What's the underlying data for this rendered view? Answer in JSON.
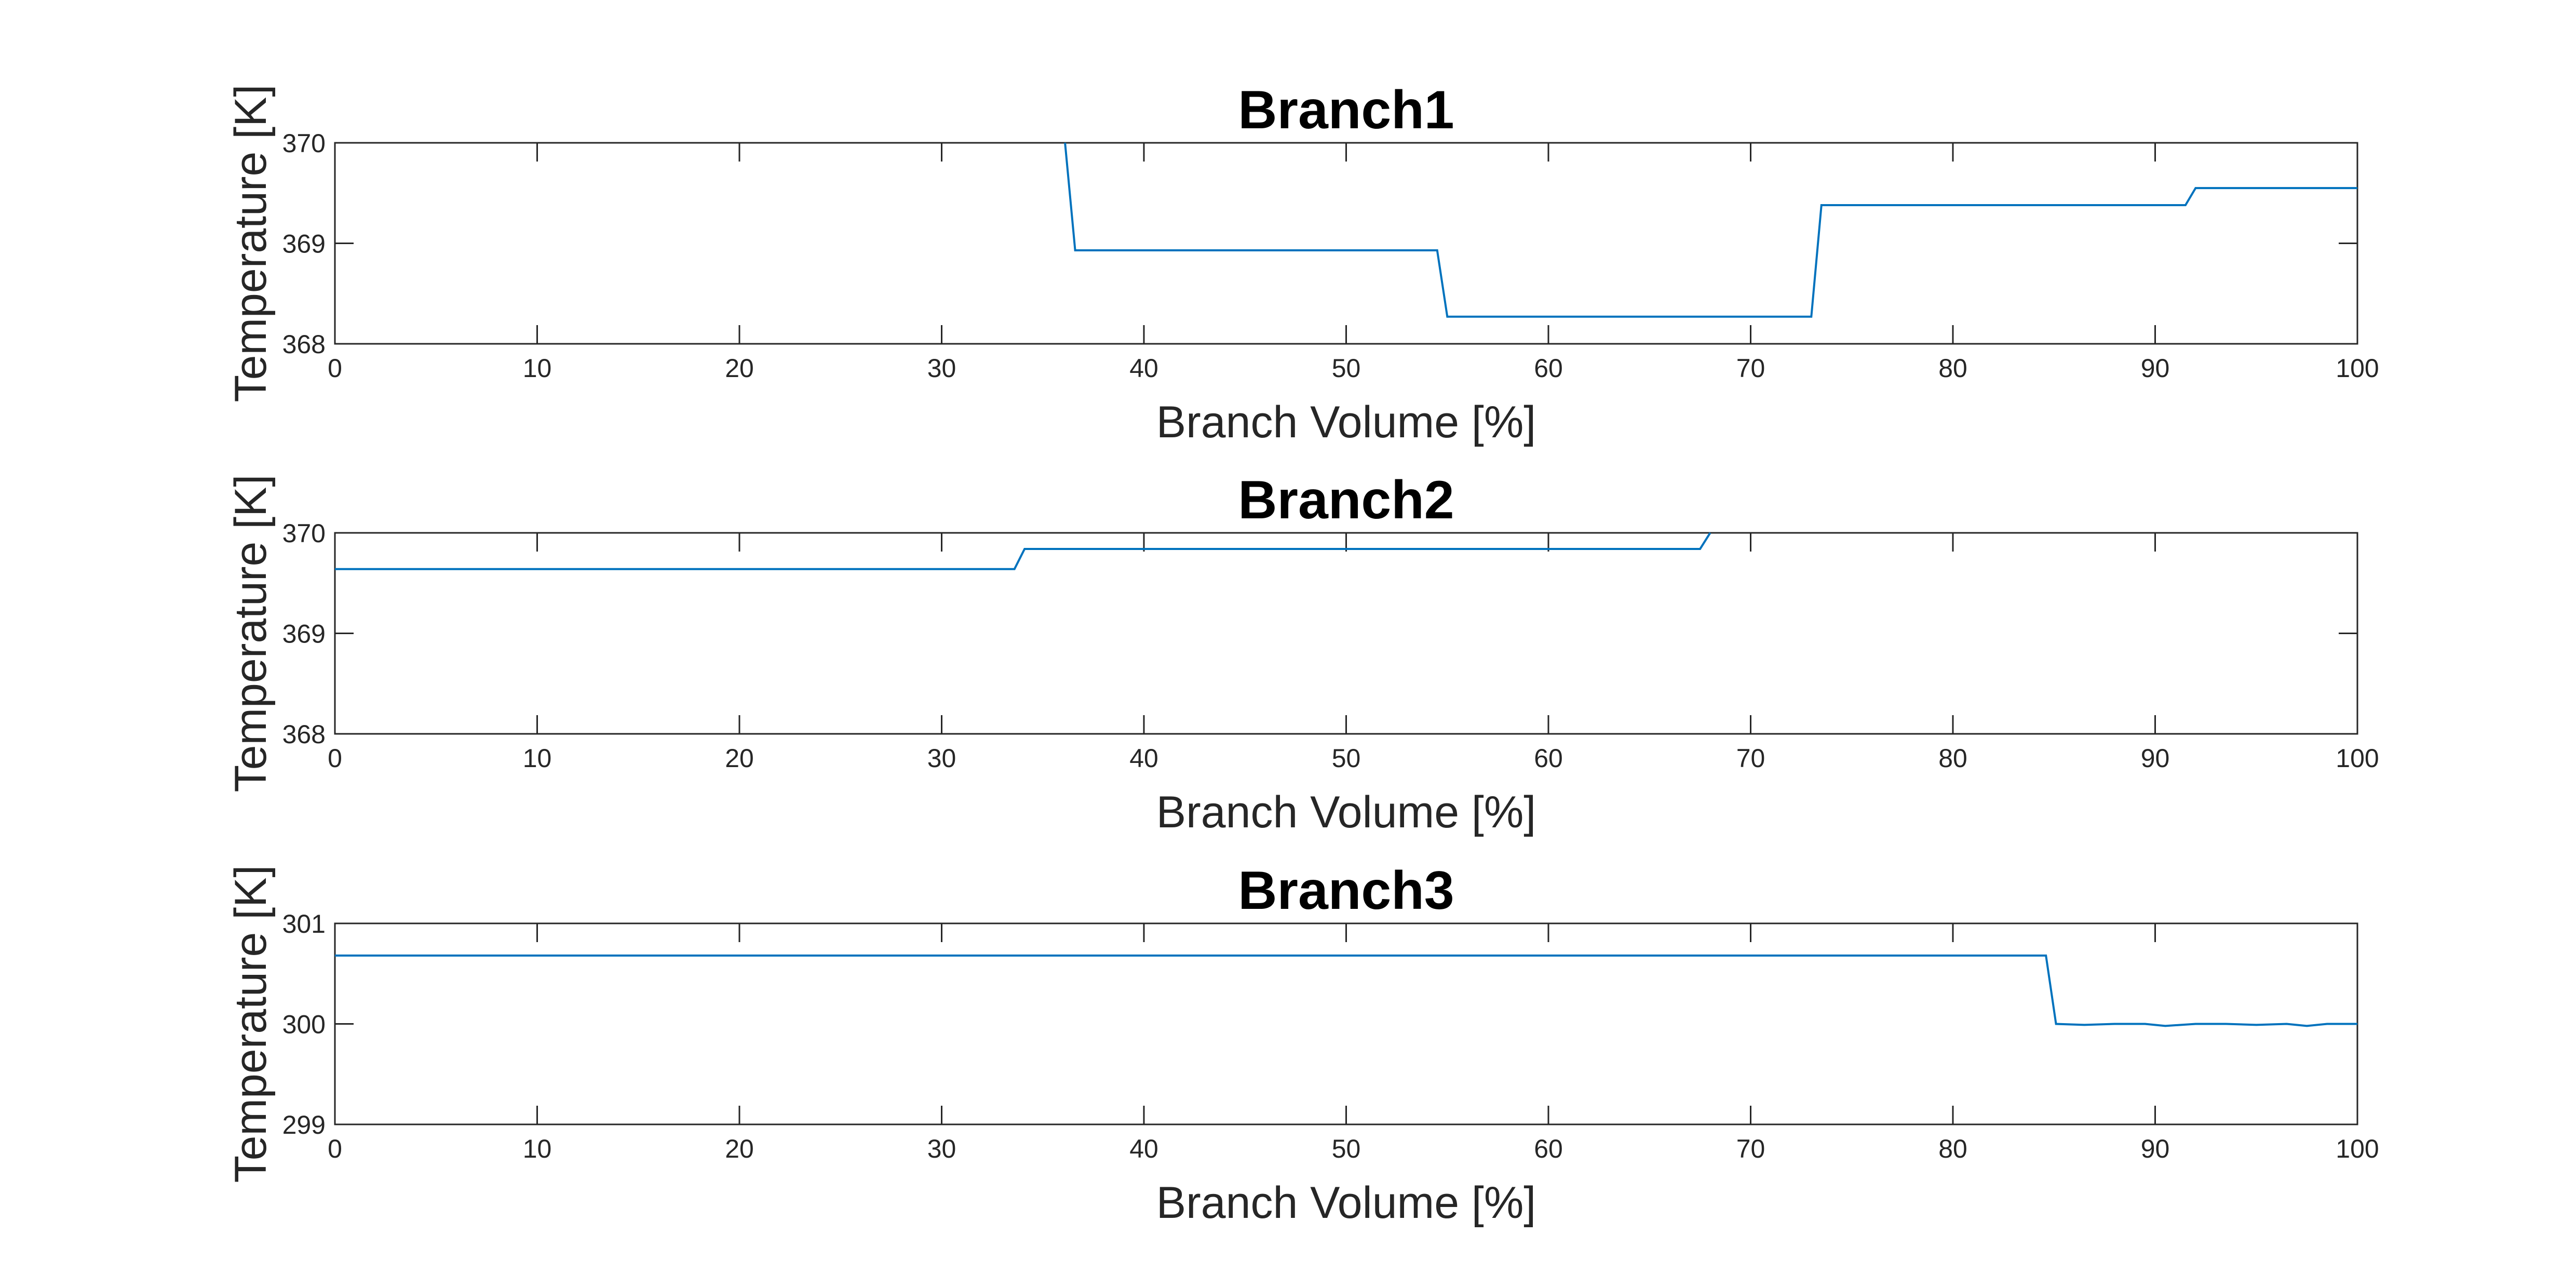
{
  "colors": {
    "line": "#0072BD",
    "axes": "#262626",
    "background": "#ffffff"
  },
  "chart_data": [
    {
      "type": "line",
      "title": "Branch1",
      "xlabel": "Branch Volume [%]",
      "ylabel": "Temperature [K]",
      "xlim": [
        0,
        100
      ],
      "ylim": [
        368,
        370
      ],
      "xticks": [
        "0",
        "10",
        "20",
        "30",
        "40",
        "50",
        "60",
        "70",
        "80",
        "90",
        "100"
      ],
      "yticks": [
        "368",
        "369",
        "370"
      ],
      "grid": false,
      "legend": "none",
      "x": [
        36.1,
        36.6,
        54.5,
        55.0,
        73.0,
        73.5,
        91.5,
        92.0,
        100
      ],
      "y": [
        370.0,
        368.93,
        368.93,
        368.27,
        368.27,
        369.38,
        369.38,
        369.55,
        369.55
      ]
    },
    {
      "type": "line",
      "title": "Branch2",
      "xlabel": "Branch Volume [%]",
      "ylabel": "Temperature [K]",
      "xlim": [
        0,
        100
      ],
      "ylim": [
        368,
        370
      ],
      "xticks": [
        "0",
        "10",
        "20",
        "30",
        "40",
        "50",
        "60",
        "70",
        "80",
        "90",
        "100"
      ],
      "yticks": [
        "368",
        "369",
        "370"
      ],
      "grid": false,
      "legend": "none",
      "x": [
        0,
        33.6,
        34.1,
        67.5,
        68.0
      ],
      "y": [
        369.64,
        369.64,
        369.84,
        369.84,
        370.0
      ]
    },
    {
      "type": "line",
      "title": "Branch3",
      "xlabel": "Branch Volume [%]",
      "ylabel": "Temperature [K]",
      "xlim": [
        0,
        100
      ],
      "ylim": [
        299,
        301
      ],
      "xticks": [
        "0",
        "10",
        "20",
        "30",
        "40",
        "50",
        "60",
        "70",
        "80",
        "90",
        "100"
      ],
      "yticks": [
        "299",
        "300",
        "301"
      ],
      "grid": false,
      "legend": "none",
      "x": [
        0,
        84.6,
        85.1,
        86.5,
        88.0,
        89.5,
        90.5,
        92.0,
        93.5,
        95.0,
        96.5,
        97.5,
        98.5,
        100
      ],
      "y": [
        300.68,
        300.68,
        300.0,
        299.99,
        300.0,
        300.0,
        299.98,
        300.0,
        300.0,
        299.99,
        300.0,
        299.98,
        300.0,
        300.0
      ]
    }
  ]
}
